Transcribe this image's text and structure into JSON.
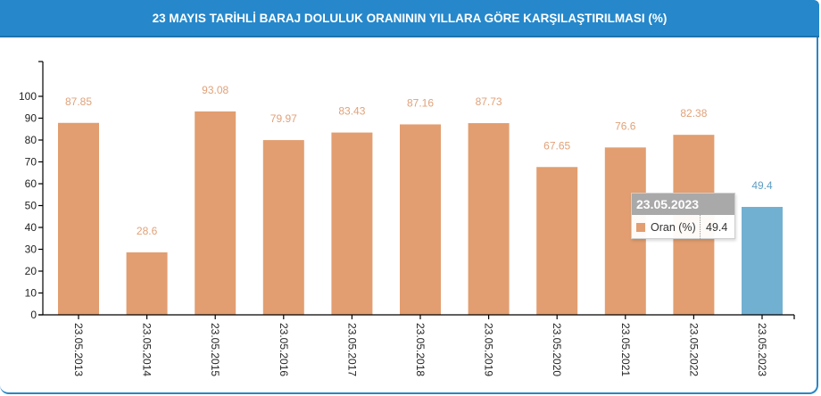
{
  "header": {
    "title": "23 MAYIS TARİHLİ BARAJ DOLULUK ORANININ YILLARA GÖRE KARŞILAŞTIRILMASI (%)"
  },
  "colors": {
    "header_bg": "#2688cb",
    "bar_default": "#e29e70",
    "bar_highlight": "#72b0d1",
    "label_default": "#e0a27a",
    "label_highlight": "#5e9ec4"
  },
  "tooltip": {
    "title": "23.05.2023",
    "series_label": "Oran (%)",
    "value": "49.4"
  },
  "chart_data": {
    "type": "bar",
    "title": "23 MAYIS TARİHLİ BARAJ DOLULUK ORANININ YILLARA GÖRE KARŞILAŞTIRILMASI (%)",
    "xlabel": "",
    "ylabel": "",
    "ylim": [
      0,
      115
    ],
    "yticks": [
      0,
      10,
      20,
      30,
      40,
      50,
      60,
      70,
      80,
      90,
      100
    ],
    "grid": false,
    "legend": "none",
    "categories": [
      "23.05.2013",
      "23.05.2014",
      "23.05.2015",
      "23.05.2016",
      "23.05.2017",
      "23.05.2018",
      "23.05.2019",
      "23.05.2020",
      "23.05.2021",
      "23.05.2022",
      "23.05.2023"
    ],
    "series": [
      {
        "name": "Oran (%)",
        "values": [
          87.85,
          28.6,
          93.08,
          79.97,
          83.43,
          87.16,
          87.73,
          67.65,
          76.6,
          82.38,
          49.4
        ],
        "labels": [
          "87.85",
          "28.6",
          "93.08",
          "79.97",
          "83.43",
          "87.16",
          "87.73",
          "67.65",
          "76.6",
          "82.38",
          "49.4"
        ]
      }
    ],
    "highlighted_index": 10
  }
}
